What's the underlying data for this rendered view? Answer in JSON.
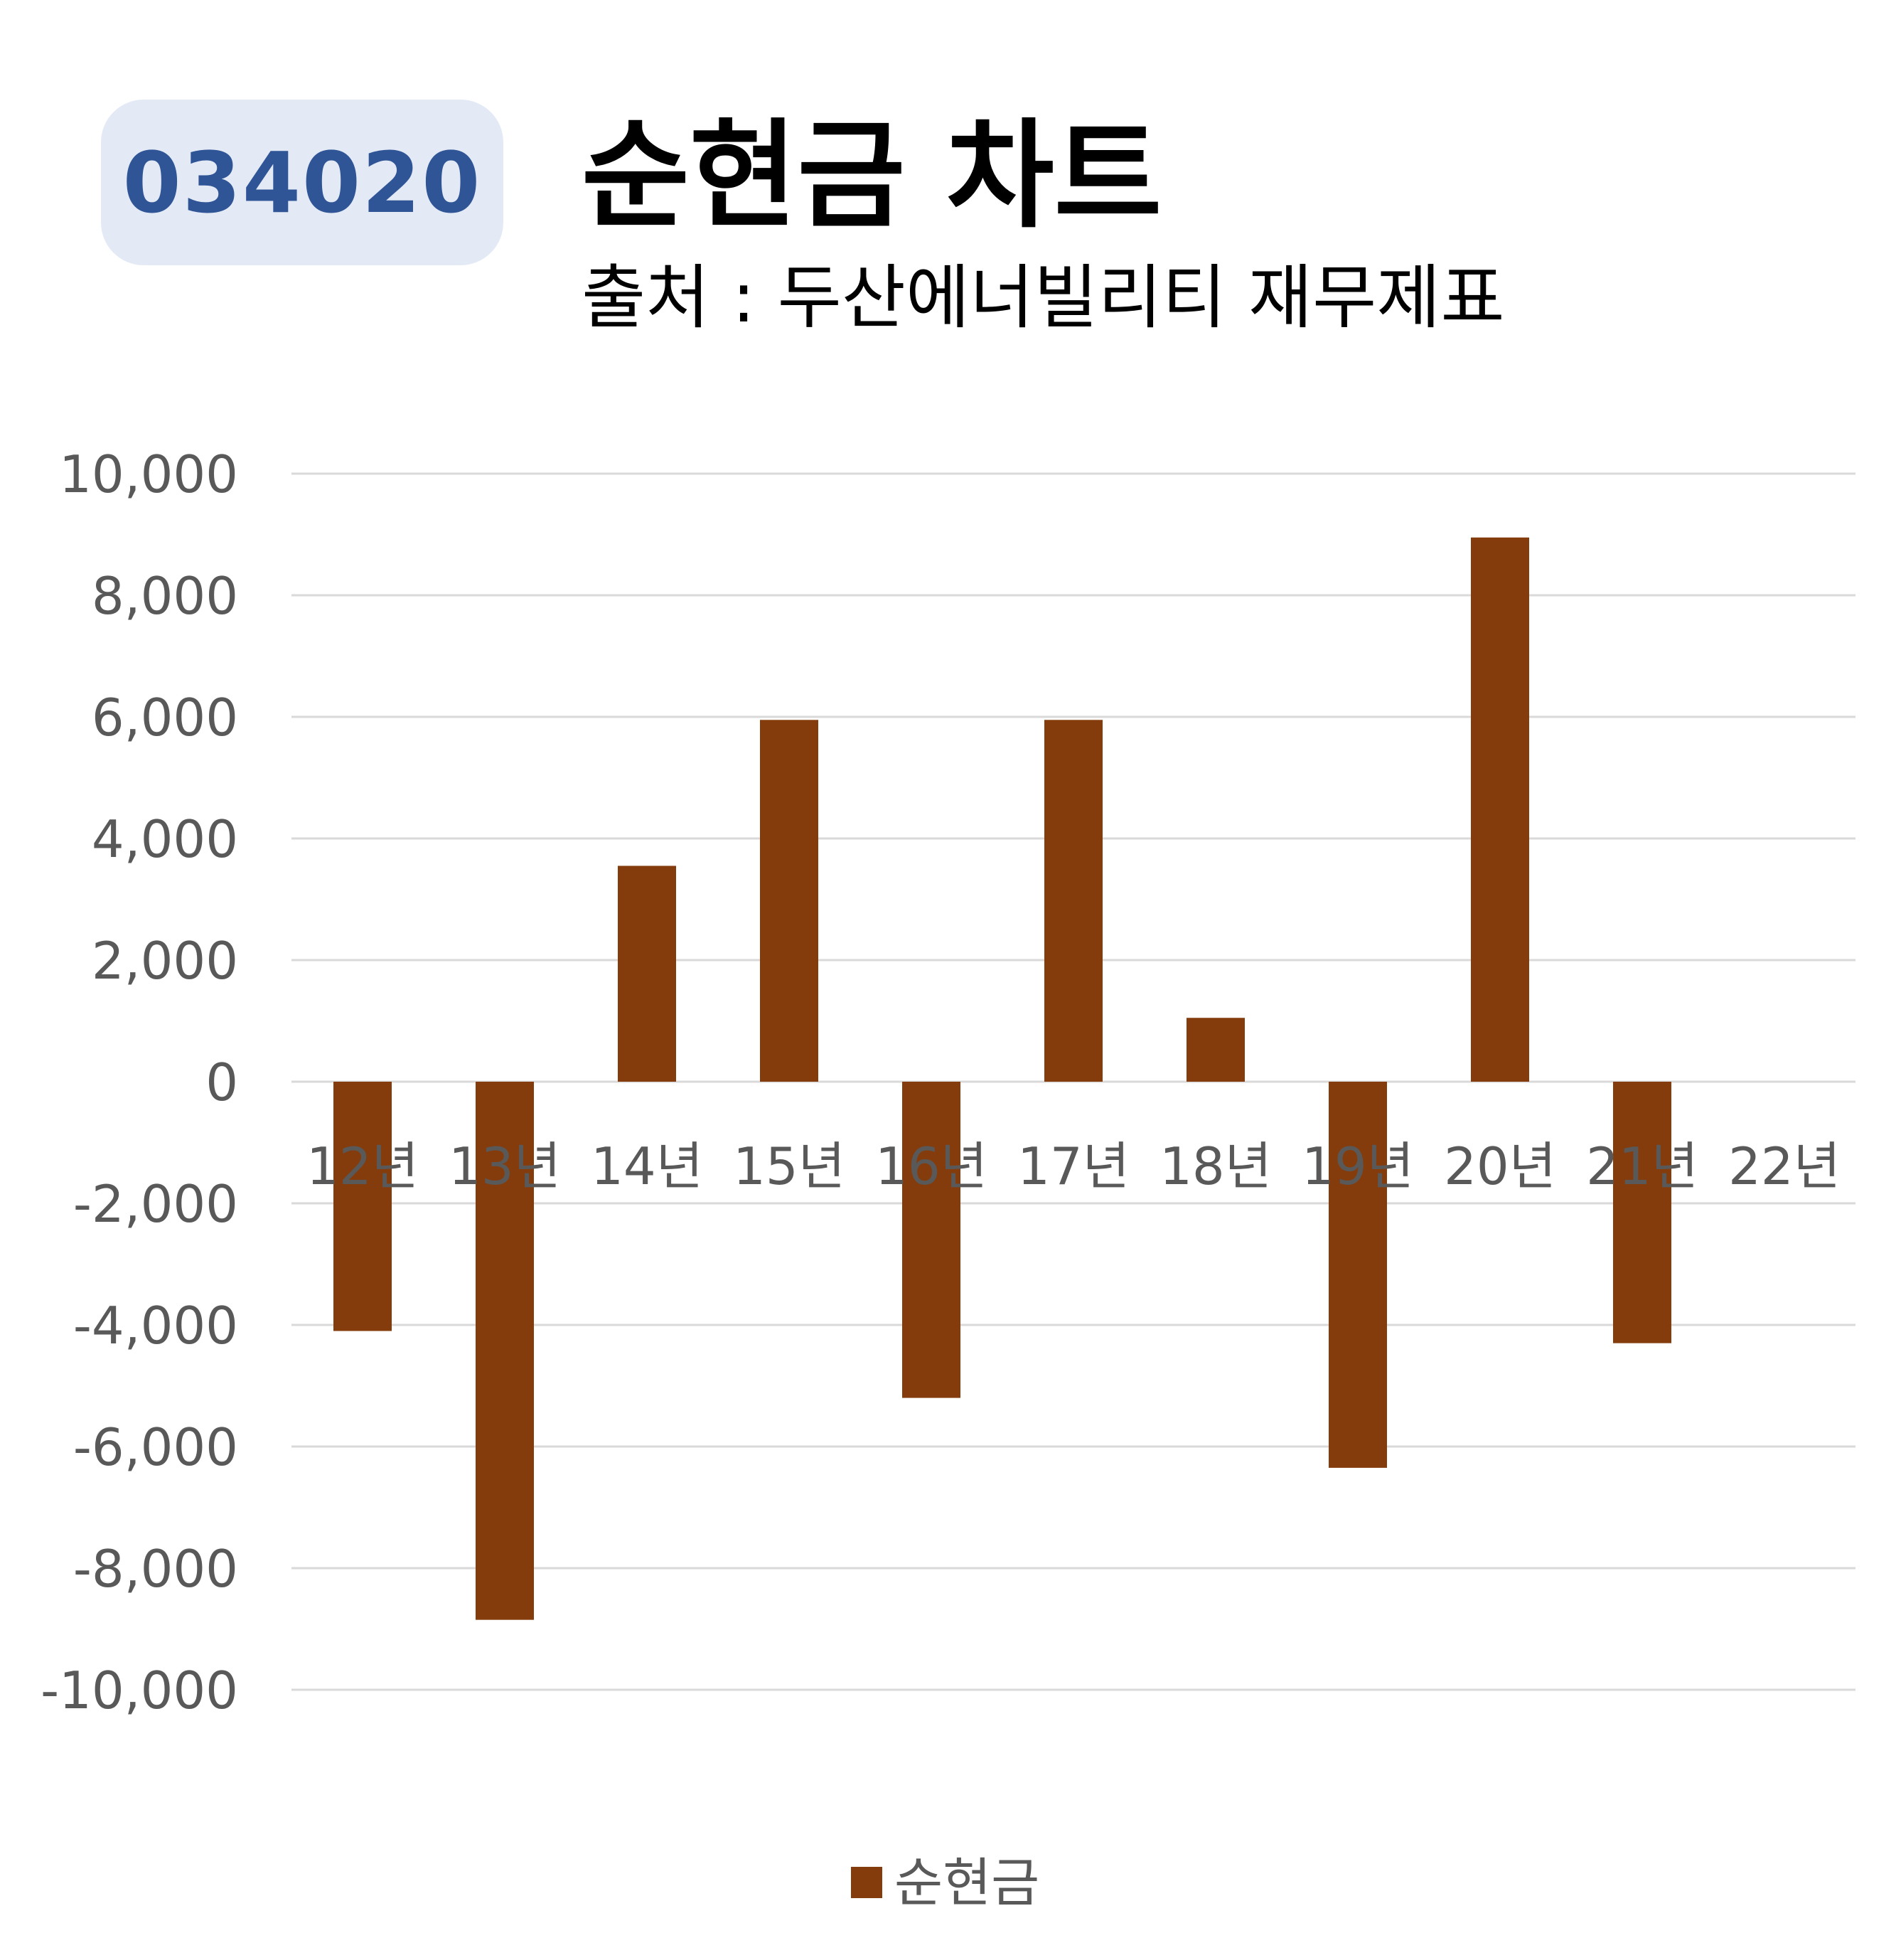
{
  "header": {
    "code": "034020",
    "title": "순현금 차트",
    "subtitle": "출처 : 두산에너빌리티 재무제표"
  },
  "colors": {
    "bar": "#843c0c",
    "badge_bg": "#e4eaf5",
    "badge_text": "#2f5597",
    "grid": "#d9d9d9"
  },
  "chart_data": {
    "type": "bar",
    "title": "순현금 차트",
    "categories": [
      "12년",
      "13년",
      "14년",
      "15년",
      "16년",
      "17년",
      "18년",
      "19년",
      "20년",
      "21년",
      "22년"
    ],
    "series": [
      {
        "name": "순현금",
        "values": [
          -4100,
          -8850,
          3550,
          5950,
          -5200,
          5950,
          1050,
          -6350,
          8950,
          -4300,
          null
        ]
      }
    ],
    "ylim": [
      -10000,
      10000
    ],
    "yticks": [
      10000,
      8000,
      6000,
      4000,
      2000,
      0,
      -2000,
      -4000,
      -6000,
      -8000,
      -10000
    ],
    "ytick_labels": [
      "10,000",
      "8,000",
      "6,000",
      "4,000",
      "2,000",
      "0",
      "-2,000",
      "-4,000",
      "-6,000",
      "-8,000",
      "-10,000"
    ],
    "grid": true,
    "legend": "bottom"
  }
}
